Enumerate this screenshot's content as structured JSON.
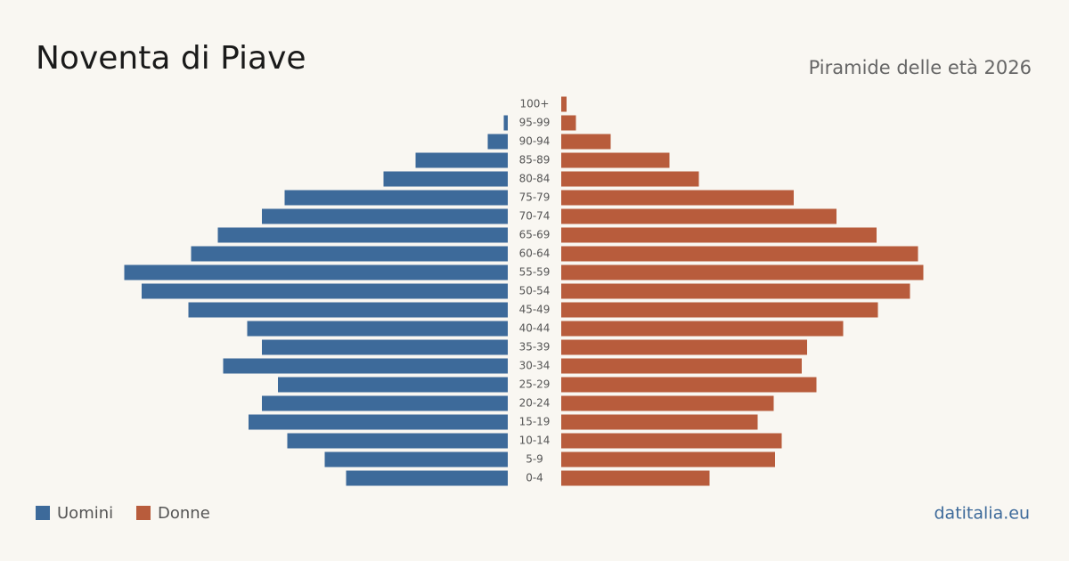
{
  "chart_data": {
    "type": "pyramid",
    "title": "Noventa di Piave",
    "subtitle": "Piramide delle età 2026",
    "source": "datitalia.eu",
    "categories": [
      "100+",
      "95-99",
      "90-94",
      "85-89",
      "80-84",
      "75-79",
      "70-74",
      "65-69",
      "60-64",
      "55-59",
      "50-54",
      "45-49",
      "40-44",
      "35-39",
      "30-34",
      "25-29",
      "20-24",
      "15-19",
      "10-14",
      "5-9",
      "0-4"
    ],
    "series": [
      {
        "name": "Uomini",
        "color": "#3d6a9a",
        "values": [
          0,
          3,
          15,
          69,
          93,
          167,
          184,
          217,
          237,
          287,
          274,
          239,
          195,
          184,
          213,
          172,
          184,
          194,
          165,
          137,
          121
        ]
      },
      {
        "name": "Donne",
        "color": "#b85c3c",
        "values": [
          4,
          11,
          37,
          81,
          103,
          174,
          206,
          236,
          267,
          271,
          261,
          237,
          211,
          184,
          180,
          191,
          159,
          147,
          165,
          160,
          111
        ]
      }
    ]
  }
}
